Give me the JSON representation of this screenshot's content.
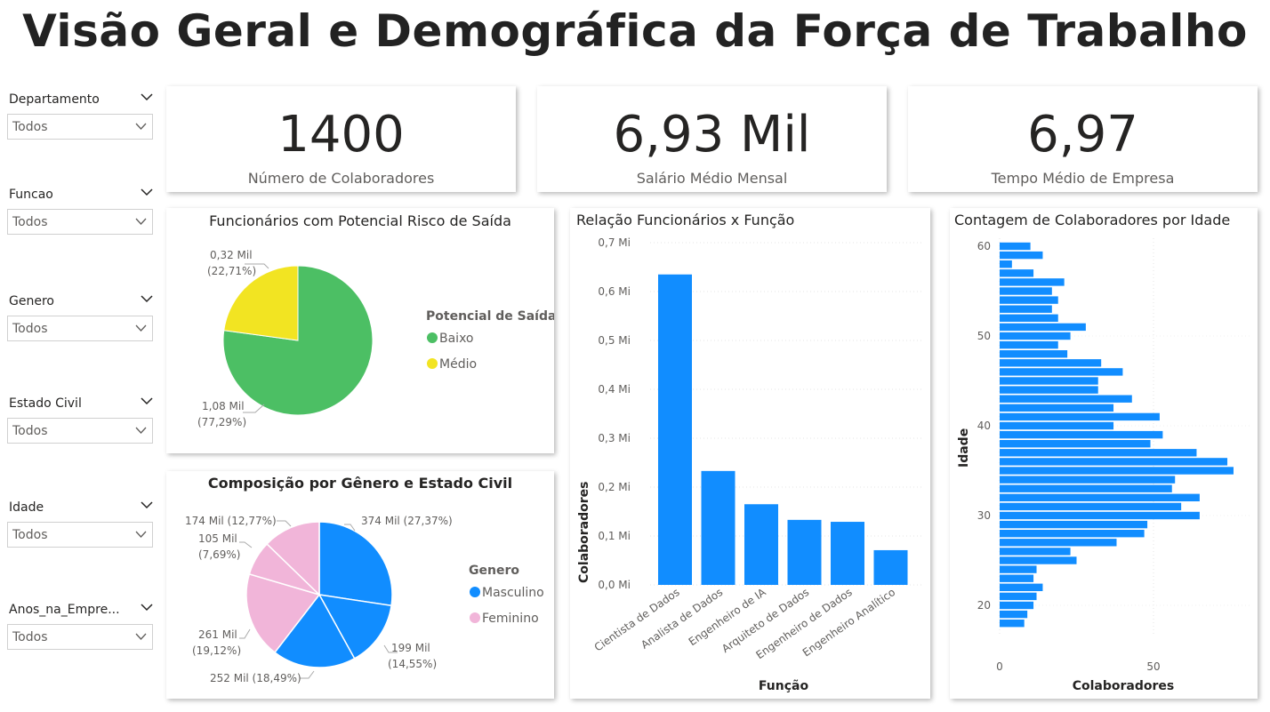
{
  "title": "Visão Geral e Demográfica da Força de Trabalho",
  "slicers": [
    {
      "label": "Departamento",
      "value": "Todos"
    },
    {
      "label": "Funcao",
      "value": "Todos"
    },
    {
      "label": "Genero",
      "value": "Todos"
    },
    {
      "label": "Estado Civil",
      "value": "Todos"
    },
    {
      "label": "Idade",
      "value": "Todos"
    },
    {
      "label": "Anos_na_Empre...",
      "value": "Todos"
    }
  ],
  "kpis": [
    {
      "value": "1400",
      "label": "Número de Colaboradores"
    },
    {
      "value": "6,93 Mil",
      "label": "Salário Médio Mensal"
    },
    {
      "value": "6,97",
      "label": "Tempo Médio de Empresa"
    }
  ],
  "colors": {
    "green": "#4cbf64",
    "yellow": "#f2e422",
    "blue": "#118dff",
    "pink": "#f1b5d9",
    "grid": "#e0e0e0"
  },
  "chart_data": [
    {
      "type": "pie",
      "title": "Funcionários com Potencial Risco de Saída",
      "legend_title": "Potencial de Saída",
      "legend_position": "right",
      "categories": [
        "Baixo",
        "Médio"
      ],
      "values": [
        1.08,
        0.32
      ],
      "percents": [
        77.29,
        22.71
      ],
      "labels": [
        [
          "1,08 Mil",
          "(77,29%)"
        ],
        [
          "0,32 Mil",
          "(22,71%)"
        ]
      ],
      "colors": [
        "#4cbf64",
        "#f2e422"
      ]
    },
    {
      "type": "pie",
      "title": "Composição por Gênero e Estado Civil",
      "legend_title": "Genero",
      "legend_position": "right",
      "categories": [
        "Masculino",
        "Feminino"
      ],
      "slices": [
        {
          "group": "Masculino",
          "value": 374,
          "percent": 27.37,
          "label": [
            "374 Mil (27,37%)"
          ]
        },
        {
          "group": "Masculino",
          "value": 199,
          "percent": 14.55,
          "label": [
            "199 Mil",
            "(14,55%)"
          ]
        },
        {
          "group": "Masculino",
          "value": 252,
          "percent": 18.49,
          "label": [
            "252 Mil (18,49%)"
          ]
        },
        {
          "group": "Feminino",
          "value": 261,
          "percent": 19.12,
          "label": [
            "261 Mil",
            "(19,12%)"
          ]
        },
        {
          "group": "Feminino",
          "value": 105,
          "percent": 7.69,
          "label": [
            "105 Mil",
            "(7,69%)"
          ]
        },
        {
          "group": "Feminino",
          "value": 174,
          "percent": 12.77,
          "label": [
            "174 Mil (12,77%)"
          ]
        }
      ],
      "colors": [
        "#118dff",
        "#f1b5d9"
      ]
    },
    {
      "type": "bar",
      "title": "Relação Funcionários x Função",
      "xlabel": "Função",
      "ylabel": "Colaboradores",
      "categories": [
        "Cientista de Dados",
        "Analista de Dados",
        "Engenheiro de IA",
        "Arquiteto de Dados",
        "Engenheiro de Dados",
        "Engenheiro Analítico"
      ],
      "values": [
        0.635,
        0.233,
        0.165,
        0.133,
        0.129,
        0.071
      ],
      "unit": "Mi",
      "ylim": [
        0,
        0.7
      ],
      "yticks": [
        "0,0 Mi",
        "0,1 Mi",
        "0,2 Mi",
        "0,3 Mi",
        "0,4 Mi",
        "0,5 Mi",
        "0,6 Mi",
        "0,7 Mi"
      ],
      "grid": true
    },
    {
      "type": "bar",
      "orientation": "horizontal",
      "title": "Contagem de Colaboradores por Idade",
      "xlabel": "Colaboradores",
      "ylabel": "Idade",
      "ages": [
        18,
        19,
        20,
        21,
        22,
        23,
        24,
        25,
        26,
        27,
        28,
        29,
        30,
        31,
        32,
        33,
        34,
        35,
        36,
        37,
        38,
        39,
        40,
        41,
        42,
        43,
        44,
        45,
        46,
        47,
        48,
        49,
        50,
        51,
        52,
        53,
        54,
        55,
        56,
        57,
        58,
        59,
        60
      ],
      "values": [
        8,
        9,
        11,
        12,
        14,
        11,
        12,
        25,
        23,
        38,
        47,
        48,
        65,
        59,
        65,
        56,
        57,
        76,
        74,
        64,
        49,
        53,
        37,
        52,
        37,
        43,
        32,
        32,
        40,
        33,
        22,
        19,
        23,
        28,
        19,
        17,
        19,
        17,
        21,
        11,
        4,
        14,
        10
      ],
      "xlim": [
        0,
        80
      ],
      "xticks": [
        "0",
        "50"
      ],
      "yticks": [
        "20",
        "30",
        "40",
        "50",
        "60"
      ],
      "grid": true
    }
  ]
}
